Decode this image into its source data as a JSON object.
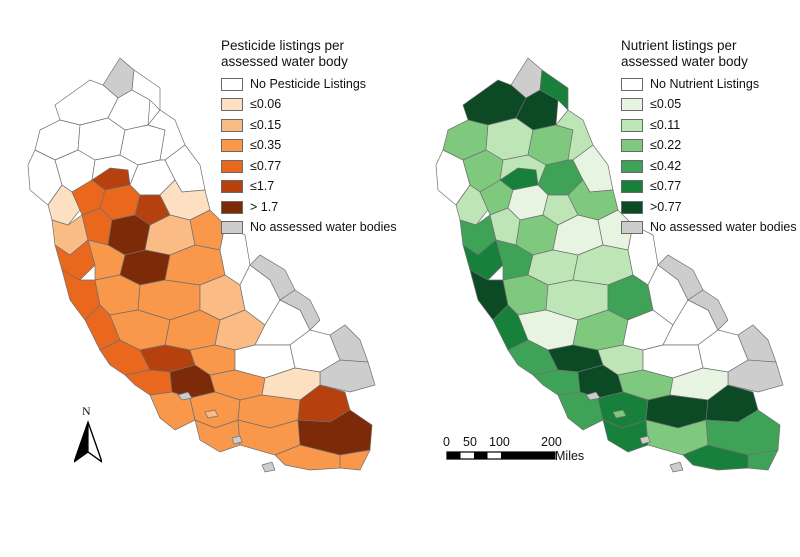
{
  "maps": [
    {
      "id": "pesticide",
      "legend": {
        "title_line1": "Pesticide listings per",
        "title_line2": "assessed water body",
        "items": [
          {
            "label": "No Pesticide Listings",
            "color": "#ffffff"
          },
          {
            "label": "≤0.06",
            "color": "#fde0c2"
          },
          {
            "label": "≤0.15",
            "color": "#fbbb85"
          },
          {
            "label": "≤0.35",
            "color": "#f9974b"
          },
          {
            "label": "≤0.77",
            "color": "#e9681d"
          },
          {
            "label": "≤1.7",
            "color": "#b6410e"
          },
          {
            "label": "> 1.7",
            "color": "#7c2a08"
          },
          {
            "label": "No assessed water bodies",
            "color": "#cdcdcd"
          }
        ]
      }
    },
    {
      "id": "nutrient",
      "legend": {
        "title_line1": "Nutrient listings per",
        "title_line2": "assessed water body",
        "items": [
          {
            "label": "No Nutrient Listings",
            "color": "#ffffff"
          },
          {
            "label": "≤0.05",
            "color": "#e6f4e1"
          },
          {
            "label": "≤0.11",
            "color": "#bde5b5"
          },
          {
            "label": "≤0.22",
            "color": "#7fc97f"
          },
          {
            "label": "≤0.42",
            "color": "#3ea356"
          },
          {
            "label": "≤0.77",
            "color": "#17803a"
          },
          {
            "label": ">0.77",
            "color": "#0b4a25"
          },
          {
            "label": "No assessed water bodies",
            "color": "#cdcdcd"
          }
        ]
      }
    }
  ],
  "north_arrow": {
    "label": "N"
  },
  "scale_bar": {
    "ticks": [
      "0",
      "50",
      "100",
      "200"
    ],
    "unit": "Miles"
  }
}
